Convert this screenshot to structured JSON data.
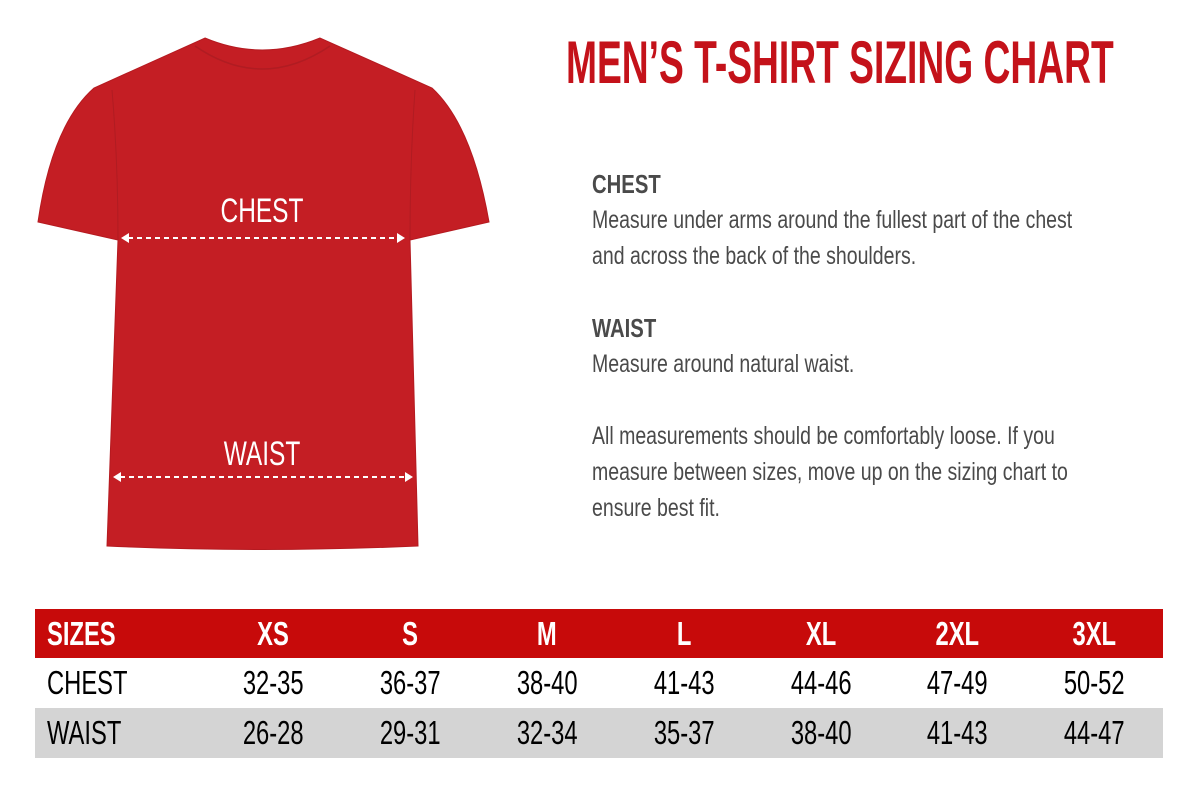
{
  "title": "MEN’S T-SHIRT SIZING CHART",
  "shirt": {
    "color": "#c41e24",
    "chest_label": "CHEST",
    "waist_label": "WAIST"
  },
  "chest": {
    "heading": "CHEST",
    "text": "Measure under arms around the fullest part of the chest and across the back of the shoulders."
  },
  "waist": {
    "heading": "WAIST",
    "text": "Measure around natural waist."
  },
  "note": "All measurements should be comfortably loose. If you measure between sizes, move up on the sizing chart to ensure best fit.",
  "table": {
    "header": [
      "SIZES",
      "XS",
      "S",
      "M",
      "L",
      "XL",
      "2XL",
      "3XL"
    ],
    "rows": [
      [
        "CHEST",
        "32-35",
        "36-37",
        "38-40",
        "41-43",
        "44-46",
        "47-49",
        "50-52"
      ],
      [
        "WAIST",
        "26-28",
        "29-31",
        "32-34",
        "35-37",
        "38-40",
        "41-43",
        "44-47"
      ]
    ]
  }
}
